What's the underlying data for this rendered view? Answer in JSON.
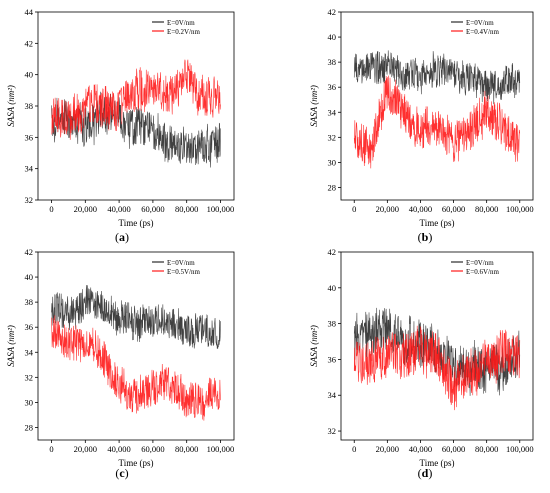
{
  "figure": {
    "background": "#ffffff",
    "colors": {
      "series_black": "#2b2b2b",
      "series_red": "#ff1a1a",
      "axis": "#000000"
    }
  },
  "chart_data": [
    {
      "id": "a",
      "type": "line",
      "panel_label": "(a)",
      "panel_letter": "a",
      "xlabel": "Time (ps)",
      "ylabel": "SASA (nm²)",
      "xlim": [
        -8000,
        108000
      ],
      "ylim": [
        32,
        44
      ],
      "xticks": [
        0,
        20000,
        40000,
        60000,
        80000,
        100000
      ],
      "xtick_labels": [
        "0",
        "20,000",
        "40,000",
        "60,000",
        "80,000",
        "100,000"
      ],
      "yticks": [
        32,
        34,
        36,
        38,
        40,
        42,
        44
      ],
      "ytick_labels": [
        "32",
        "34",
        "36",
        "38",
        "40",
        "42",
        "44"
      ],
      "legend_position": "top-right",
      "series": [
        {
          "name": "E=0V/nm",
          "color": "#2b2b2b",
          "x": [
            0,
            10000,
            20000,
            30000,
            40000,
            50000,
            60000,
            70000,
            80000,
            90000,
            100000
          ],
          "mean": [
            37.0,
            37.2,
            36.8,
            37.4,
            37.0,
            36.8,
            36.4,
            35.5,
            35.0,
            35.5,
            36.0
          ],
          "amplitude": 1.2
        },
        {
          "name": "E=0.2V/nm",
          "color": "#ff1a1a",
          "x": [
            0,
            10000,
            20000,
            30000,
            40000,
            50000,
            60000,
            70000,
            80000,
            90000,
            100000
          ],
          "mean": [
            37.0,
            37.5,
            37.8,
            38.0,
            38.0,
            39.0,
            39.0,
            38.8,
            40.0,
            38.5,
            38.5
          ],
          "amplitude": 1.3
        }
      ]
    },
    {
      "id": "b",
      "type": "line",
      "panel_label": "(b)",
      "panel_letter": "b",
      "xlabel": "Time (ps)",
      "ylabel": "SASA (nm²)",
      "xlim": [
        -8000,
        108000
      ],
      "ylim": [
        27,
        42
      ],
      "xticks": [
        0,
        20000,
        40000,
        60000,
        80000,
        100000
      ],
      "xtick_labels": [
        "0",
        "20,000",
        "40,000",
        "60,000",
        "80,000",
        "100,000"
      ],
      "yticks": [
        28,
        30,
        32,
        34,
        36,
        38,
        40,
        42
      ],
      "ytick_labels": [
        "28",
        "30",
        "32",
        "34",
        "36",
        "38",
        "40",
        "42"
      ],
      "legend_position": "top-right",
      "series": [
        {
          "name": "E=0V/nm",
          "color": "#2b2b2b",
          "x": [
            0,
            10000,
            20000,
            30000,
            40000,
            50000,
            60000,
            70000,
            80000,
            90000,
            100000
          ],
          "mean": [
            37.5,
            38.0,
            37.8,
            37.0,
            37.0,
            37.5,
            37.0,
            36.5,
            36.0,
            36.0,
            36.5
          ],
          "amplitude": 1.3
        },
        {
          "name": "E=0.4V/nm",
          "color": "#ff1a1a",
          "x": [
            0,
            10000,
            20000,
            30000,
            40000,
            50000,
            60000,
            70000,
            80000,
            90000,
            100000
          ],
          "mean": [
            32.0,
            31.0,
            36.0,
            34.0,
            32.5,
            33.0,
            31.5,
            32.5,
            34.0,
            32.5,
            31.0
          ],
          "amplitude": 1.6
        }
      ]
    },
    {
      "id": "c",
      "type": "line",
      "panel_label": "(c)",
      "panel_letter": "c",
      "xlabel": "Time (ps)",
      "ylabel": "SASA (nm²)",
      "xlim": [
        -8000,
        108000
      ],
      "ylim": [
        27,
        42
      ],
      "xticks": [
        0,
        20000,
        40000,
        60000,
        80000,
        100000
      ],
      "xtick_labels": [
        "0",
        "20,000",
        "40,000",
        "60,000",
        "80,000",
        "100,000"
      ],
      "yticks": [
        28,
        30,
        32,
        34,
        36,
        38,
        40,
        42
      ],
      "ytick_labels": [
        "28",
        "30",
        "32",
        "34",
        "36",
        "38",
        "40",
        "42"
      ],
      "legend_position": "top-right",
      "series": [
        {
          "name": "E=0V/nm",
          "color": "#2b2b2b",
          "x": [
            0,
            10000,
            20000,
            30000,
            40000,
            50000,
            60000,
            70000,
            80000,
            90000,
            100000
          ],
          "mean": [
            37.5,
            37.0,
            38.0,
            37.5,
            36.5,
            36.5,
            36.5,
            36.0,
            35.5,
            35.5,
            36.0
          ],
          "amplitude": 1.3
        },
        {
          "name": "E=0.5V/nm",
          "color": "#ff1a1a",
          "x": [
            0,
            10000,
            20000,
            30000,
            40000,
            50000,
            60000,
            70000,
            80000,
            90000,
            100000
          ],
          "mean": [
            36.0,
            34.5,
            35.0,
            33.5,
            31.5,
            30.5,
            31.0,
            31.5,
            30.0,
            30.5,
            31.0
          ],
          "amplitude": 1.4
        }
      ]
    },
    {
      "id": "d",
      "type": "line",
      "panel_label": "(d)",
      "panel_letter": "d",
      "xlabel": "Time (ps)",
      "ylabel": "SASA (nm²)",
      "xlim": [
        -8000,
        108000
      ],
      "ylim": [
        31.5,
        42
      ],
      "xticks": [
        0,
        20000,
        40000,
        60000,
        80000,
        100000
      ],
      "xtick_labels": [
        "0",
        "20,000",
        "40,000",
        "60,000",
        "80,000",
        "100,000"
      ],
      "yticks": [
        32,
        34,
        36,
        38,
        40,
        42
      ],
      "ytick_labels": [
        "32",
        "34",
        "36",
        "38",
        "40",
        "42"
      ],
      "legend_position": "top-right",
      "series": [
        {
          "name": "E=0V/nm",
          "color": "#2b2b2b",
          "x": [
            0,
            10000,
            20000,
            30000,
            40000,
            50000,
            60000,
            70000,
            80000,
            90000,
            100000
          ],
          "mean": [
            37.0,
            37.5,
            37.8,
            37.0,
            37.0,
            36.5,
            35.5,
            35.5,
            35.5,
            35.5,
            36.5
          ],
          "amplitude": 1.3
        },
        {
          "name": "E=0.6V/nm",
          "color": "#ff1a1a",
          "x": [
            0,
            10000,
            20000,
            30000,
            40000,
            50000,
            60000,
            70000,
            80000,
            90000,
            100000
          ],
          "mean": [
            36.5,
            36.0,
            36.5,
            36.0,
            36.5,
            36.5,
            34.5,
            35.0,
            36.0,
            36.5,
            36.5
          ],
          "amplitude": 1.3
        }
      ]
    }
  ]
}
